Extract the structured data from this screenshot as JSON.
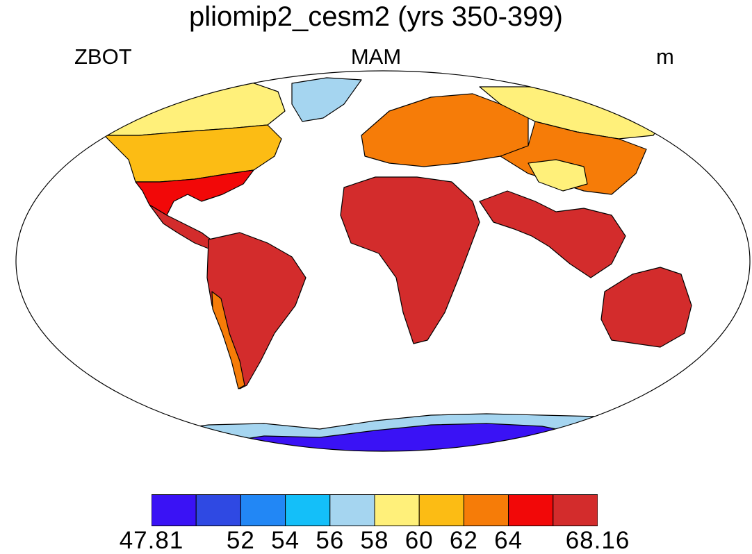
{
  "title": "pliomip2_cesm2 (yrs 350-399)",
  "left_label": "ZBOT",
  "center_label": "MAM",
  "right_label": "m",
  "colorbar": {
    "colors": [
      "#3a12f5",
      "#2f49e3",
      "#2287f5",
      "#14bff9",
      "#a5d5f0",
      "#fff07a",
      "#fcbc14",
      "#f67c08",
      "#f20808",
      "#d32c2c"
    ],
    "labels": [
      {
        "text": "47.81",
        "boundary": 0
      },
      {
        "text": "52",
        "boundary": 2
      },
      {
        "text": "54",
        "boundary": 3
      },
      {
        "text": "56",
        "boundary": 4
      },
      {
        "text": "58",
        "boundary": 5
      },
      {
        "text": "60",
        "boundary": 6
      },
      {
        "text": "62",
        "boundary": 7
      },
      {
        "text": "64",
        "boundary": 8
      },
      {
        "text": "68.16",
        "boundary": 10
      }
    ]
  },
  "regions": [
    {
      "name": "north-america-north",
      "color": "#fff07a"
    },
    {
      "name": "north-america-mid",
      "color": "#fcbc14"
    },
    {
      "name": "north-america-south",
      "color": "#f20808"
    },
    {
      "name": "central-america",
      "color": "#d32c2c"
    },
    {
      "name": "greenland",
      "color": "#a5d5f0"
    },
    {
      "name": "south-america",
      "color": "#d32c2c"
    },
    {
      "name": "andes",
      "color": "#f67c08"
    },
    {
      "name": "europe",
      "color": "#f67c08"
    },
    {
      "name": "siberia",
      "color": "#fff07a"
    },
    {
      "name": "central-asia",
      "color": "#f67c08"
    },
    {
      "name": "tibet",
      "color": "#fff07a"
    },
    {
      "name": "africa",
      "color": "#d32c2c"
    },
    {
      "name": "south-asia",
      "color": "#d32c2c"
    },
    {
      "name": "australia",
      "color": "#d32c2c"
    },
    {
      "name": "antarctica-coast",
      "color": "#a5d5f0"
    },
    {
      "name": "antarctica-interior",
      "color": "#3a12f5"
    }
  ]
}
